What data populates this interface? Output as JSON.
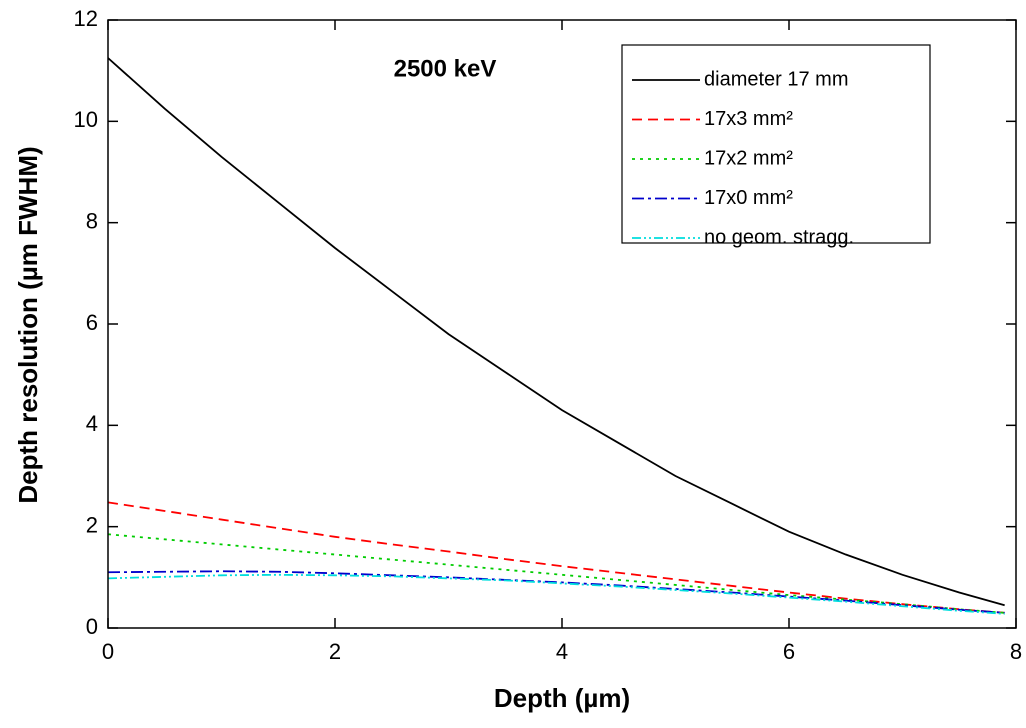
{
  "chart_data": {
    "type": "line",
    "annotation": "2500 keV",
    "xlabel": "Depth (µm)",
    "ylabel": "Depth resolution (µm FWHM)",
    "x": [
      0,
      0.5,
      1,
      1.5,
      2,
      2.5,
      3,
      3.5,
      4,
      4.5,
      5,
      5.5,
      6,
      6.5,
      7,
      7.5,
      7.9
    ],
    "series": [
      {
        "name": "diameter 17 mm",
        "color": "#000000",
        "dash": "solid",
        "values": [
          11.25,
          10.25,
          9.3,
          8.4,
          7.5,
          6.65,
          5.8,
          5.05,
          4.3,
          3.65,
          3.0,
          2.45,
          1.9,
          1.45,
          1.05,
          0.7,
          0.45
        ]
      },
      {
        "name": "17x3 mm²",
        "color": "#ff0000",
        "dash": "dash",
        "values": [
          2.48,
          2.31,
          2.14,
          1.97,
          1.8,
          1.65,
          1.51,
          1.36,
          1.22,
          1.09,
          0.96,
          0.83,
          0.7,
          0.58,
          0.47,
          0.37,
          0.3
        ]
      },
      {
        "name": "17x2 mm²",
        "color": "#00cc00",
        "dash": "dot",
        "values": [
          1.85,
          1.75,
          1.65,
          1.55,
          1.45,
          1.35,
          1.25,
          1.15,
          1.05,
          0.95,
          0.85,
          0.75,
          0.65,
          0.56,
          0.47,
          0.37,
          0.3
        ]
      },
      {
        "name": "17x0 mm²",
        "color": "#0000cc",
        "dash": "dashdot",
        "values": [
          1.1,
          1.11,
          1.12,
          1.11,
          1.08,
          1.04,
          1.0,
          0.95,
          0.9,
          0.84,
          0.77,
          0.7,
          0.62,
          0.54,
          0.45,
          0.36,
          0.3
        ]
      },
      {
        "name": "no geom. stragg.",
        "color": "#00dddd",
        "dash": "dashdotdot",
        "values": [
          0.98,
          1.01,
          1.04,
          1.05,
          1.04,
          1.02,
          0.98,
          0.94,
          0.88,
          0.82,
          0.75,
          0.68,
          0.6,
          0.52,
          0.43,
          0.34,
          0.28
        ]
      }
    ],
    "xlim": [
      0,
      8
    ],
    "xticks": [
      0,
      2,
      4,
      6,
      8
    ],
    "ylim": [
      0,
      12
    ],
    "yticks": [
      0,
      2,
      4,
      6,
      8,
      10,
      12
    ],
    "grid": false,
    "legend": "upper right"
  }
}
